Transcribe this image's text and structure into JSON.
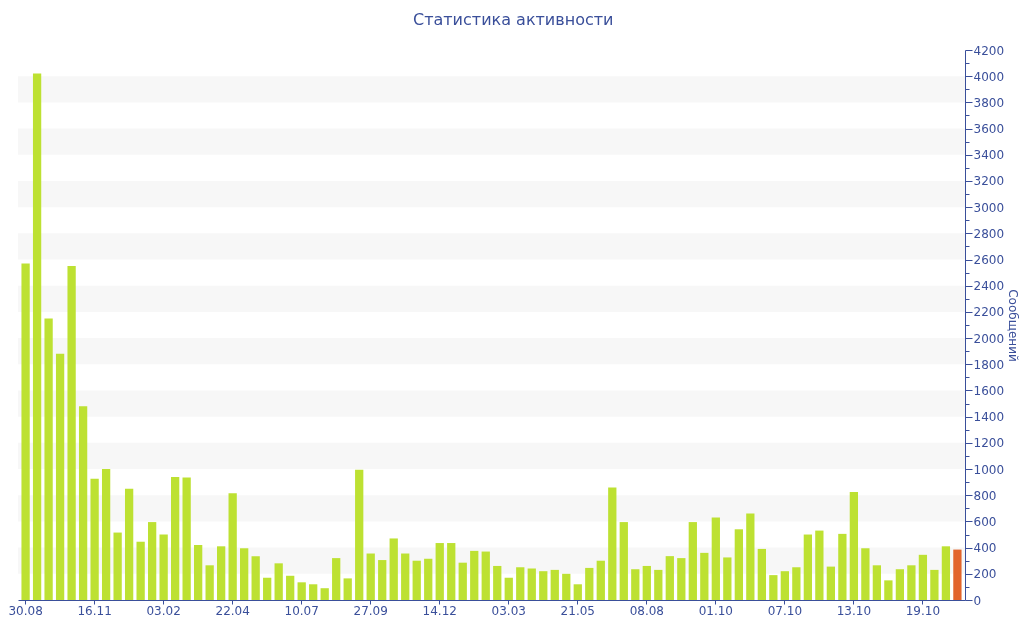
{
  "chart_data": {
    "type": "bar",
    "title": "Статистика активности",
    "ylabel": "Сообщений",
    "categories": [
      "30.08",
      null,
      null,
      null,
      null,
      null,
      "16.11",
      null,
      null,
      null,
      null,
      null,
      "03.02",
      null,
      null,
      null,
      null,
      null,
      "22.04",
      null,
      null,
      null,
      null,
      null,
      "10.07",
      null,
      null,
      null,
      null,
      null,
      "27.09",
      null,
      null,
      null,
      null,
      null,
      "14.12",
      null,
      null,
      null,
      null,
      null,
      "03.03",
      null,
      null,
      null,
      null,
      null,
      "21.05",
      null,
      null,
      null,
      null,
      null,
      "08.08",
      null,
      null,
      null,
      null,
      null,
      "01.10",
      null,
      null,
      null,
      null,
      null,
      "07.10",
      null,
      null,
      null,
      null,
      null,
      "13.10",
      null,
      null,
      null,
      null,
      null,
      "19.10",
      null,
      null,
      null
    ],
    "values": [
      2570,
      4020,
      2150,
      1880,
      2550,
      1480,
      925,
      1000,
      515,
      850,
      445,
      595,
      500,
      940,
      935,
      420,
      265,
      410,
      815,
      395,
      335,
      170,
      280,
      185,
      135,
      120,
      90,
      320,
      165,
      995,
      355,
      305,
      470,
      355,
      300,
      315,
      435,
      435,
      285,
      375,
      370,
      260,
      170,
      250,
      240,
      220,
      230,
      200,
      120,
      245,
      300,
      860,
      595,
      235,
      260,
      230,
      335,
      320,
      595,
      360,
      630,
      325,
      540,
      660,
      390,
      190,
      220,
      250,
      500,
      530,
      255,
      505,
      825,
      395,
      265,
      150,
      235,
      265,
      345,
      230,
      410,
      385
    ],
    "colors": [
      "#bde132",
      "#bde132",
      "#bde132",
      "#bde132",
      "#bde132",
      "#bde132",
      "#bde132",
      "#bde132",
      "#bde132",
      "#bde132",
      "#bde132",
      "#bde132",
      "#bde132",
      "#bde132",
      "#bde132",
      "#bde132",
      "#bde132",
      "#bde132",
      "#bde132",
      "#bde132",
      "#bde132",
      "#bde132",
      "#bde132",
      "#bde132",
      "#bde132",
      "#bde132",
      "#bde132",
      "#bde132",
      "#bde132",
      "#bde132",
      "#bde132",
      "#bde132",
      "#bde132",
      "#bde132",
      "#bde132",
      "#bde132",
      "#bde132",
      "#bde132",
      "#bde132",
      "#bde132",
      "#bde132",
      "#bde132",
      "#bde132",
      "#bde132",
      "#bde132",
      "#bde132",
      "#bde132",
      "#bde132",
      "#bde132",
      "#bde132",
      "#bde132",
      "#bde132",
      "#bde132",
      "#bde132",
      "#bde132",
      "#bde132",
      "#bde132",
      "#bde132",
      "#bde132",
      "#bde132",
      "#bde132",
      "#bde132",
      "#bde132",
      "#bde132",
      "#bde132",
      "#bde132",
      "#bde132",
      "#bde132",
      "#bde132",
      "#bde132",
      "#bde132",
      "#bde132",
      "#bde132",
      "#bde132",
      "#bde132",
      "#bde132",
      "#bde132",
      "#bde132",
      "#bde132",
      "#bde132",
      "#bde132",
      "#e2652c"
    ],
    "ylim": [
      0,
      4200
    ],
    "yticks": [
      0,
      {
        "value": 100,
        "label": null
      },
      200,
      {
        "value": 300,
        "label": null
      },
      400,
      {
        "value": 500,
        "label": null
      },
      600,
      {
        "value": 700,
        "label": null
      },
      800,
      {
        "value": 900,
        "label": null
      },
      1000,
      {
        "value": 1100,
        "label": null
      },
      1200,
      {
        "value": 1300,
        "label": null
      },
      1400,
      {
        "value": 1500,
        "label": null
      },
      1600,
      {
        "value": 1700,
        "label": null
      },
      1800,
      {
        "value": 1900,
        "label": null
      },
      2000,
      {
        "value": 2100,
        "label": null
      },
      2200,
      {
        "value": 2300,
        "label": null
      },
      2400,
      {
        "value": 2500,
        "label": null
      },
      2600,
      {
        "value": 2700,
        "label": null
      },
      2800,
      {
        "value": 2900,
        "label": null
      },
      3000,
      {
        "value": 3100,
        "label": null
      },
      3200,
      {
        "value": 3300,
        "label": null
      },
      3400,
      {
        "value": 3500,
        "label": null
      },
      3600,
      {
        "value": 3700,
        "label": null
      },
      3800,
      {
        "value": 3900,
        "label": null
      },
      4000,
      {
        "value": 4100,
        "label": null
      },
      4200
    ],
    "bands": [
      {
        "axis": "y",
        "from": 200,
        "to": 400,
        "color": "#f7f7f7"
      },
      {
        "axis": "y",
        "from": 600,
        "to": 800,
        "color": "#f7f7f7"
      },
      {
        "axis": "y",
        "from": 1000,
        "to": 1200,
        "color": "#f7f7f7"
      },
      {
        "axis": "y",
        "from": 1400,
        "to": 1600,
        "color": "#f7f7f7"
      },
      {
        "axis": "y",
        "from": 1800,
        "to": 2000,
        "color": "#f7f7f7"
      },
      {
        "axis": "y",
        "from": 2200,
        "to": 2400,
        "color": "#f7f7f7"
      },
      {
        "axis": "y",
        "from": 2600,
        "to": 2800,
        "color": "#f7f7f7"
      },
      {
        "axis": "y",
        "from": 3000,
        "to": 3200,
        "color": "#f7f7f7"
      },
      {
        "axis": "y",
        "from": 3400,
        "to": 3600,
        "color": "#f7f7f7"
      },
      {
        "axis": "y",
        "from": 3800,
        "to": 4000,
        "color": "#f7f7f7"
      }
    ]
  }
}
